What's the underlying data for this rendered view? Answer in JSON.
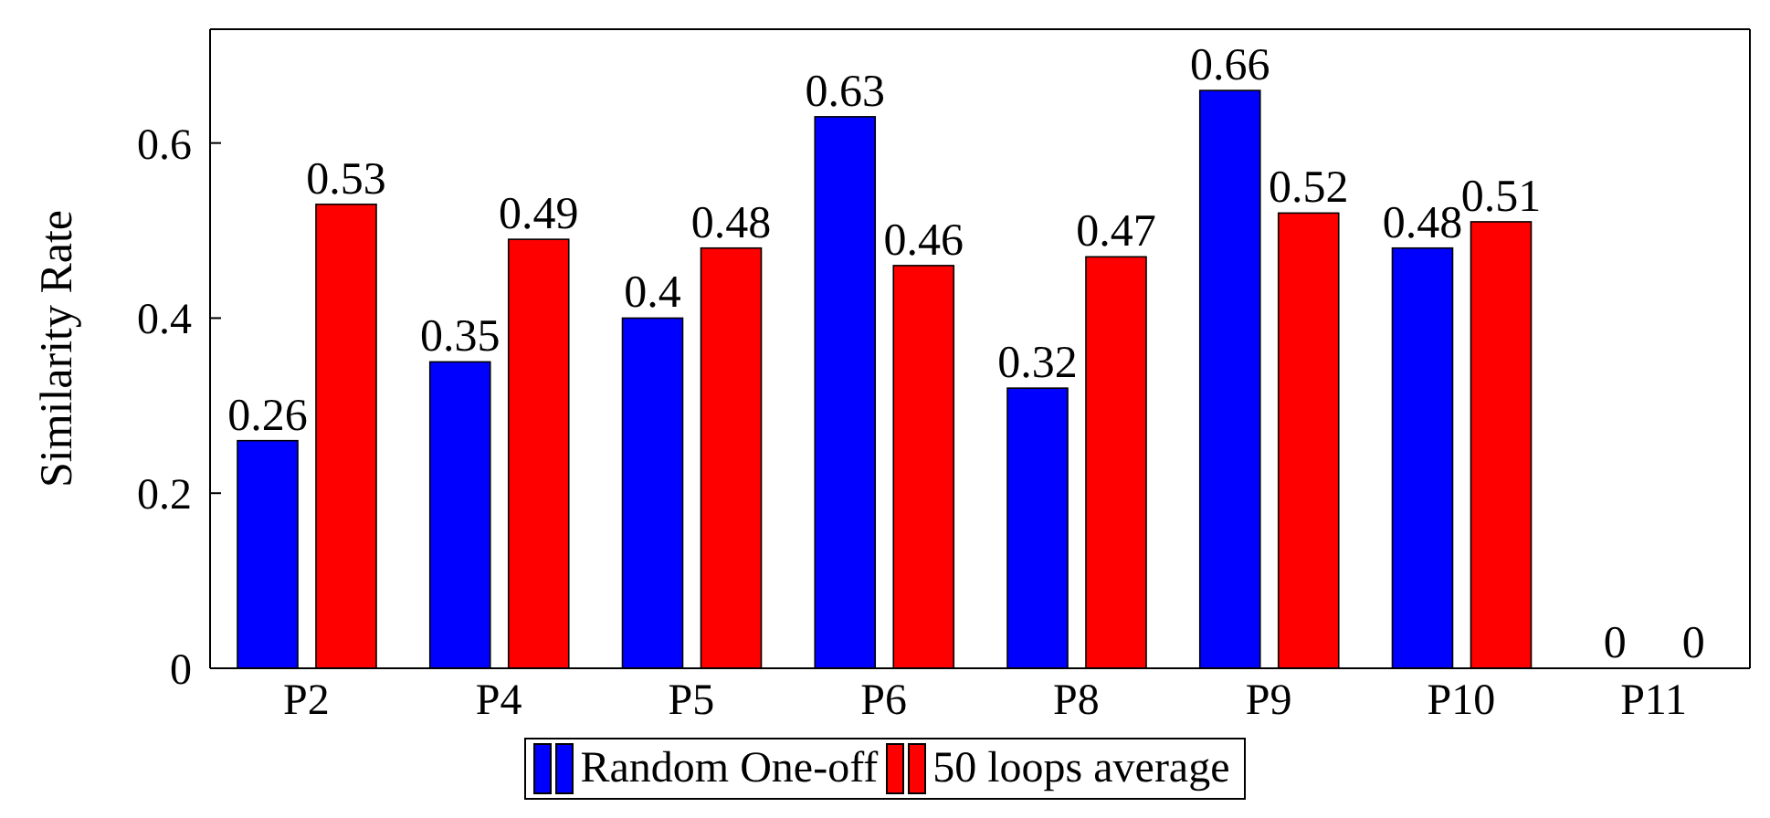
{
  "chart_data": {
    "type": "bar",
    "ylabel": "Similarity Rate",
    "categories": [
      "P2",
      "P4",
      "P5",
      "P6",
      "P8",
      "P9",
      "P10",
      "P11"
    ],
    "series": [
      {
        "name": "Random One-off",
        "color": "#0000ff",
        "values": [
          0.26,
          0.35,
          0.4,
          0.63,
          0.32,
          0.66,
          0.48,
          0
        ]
      },
      {
        "name": "50 loops average",
        "color": "#ff0000",
        "values": [
          0.53,
          0.49,
          0.48,
          0.46,
          0.47,
          0.52,
          0.51,
          0
        ]
      }
    ],
    "ylim": [
      0,
      0.73
    ],
    "yticks": [
      0,
      0.2,
      0.4,
      0.6
    ],
    "grid": false,
    "legend": "bottom",
    "data_labels": true
  }
}
